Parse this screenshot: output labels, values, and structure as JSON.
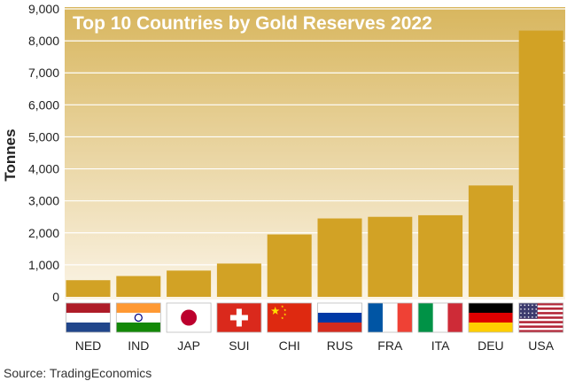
{
  "chart_data": {
    "type": "bar",
    "title": "Top 10 Countries by Gold Reserves 2022",
    "xlabel": "",
    "ylabel": "Tonnes",
    "ylim": [
      0,
      9000
    ],
    "yticks": [
      0,
      1000,
      2000,
      3000,
      4000,
      5000,
      6000,
      7000,
      8000,
      9000
    ],
    "ytick_labels": [
      "0",
      "1,000",
      "2,000",
      "3,000",
      "4,000",
      "5,000",
      "6,000",
      "7,000",
      "8,000",
      "9,000"
    ],
    "categories": [
      "NED",
      "IND",
      "JAP",
      "SUI",
      "CHI",
      "RUS",
      "FRA",
      "ITA",
      "DEU",
      "USA"
    ],
    "values": [
      520,
      650,
      820,
      1040,
      1950,
      2450,
      2500,
      2550,
      3480,
      8320
    ],
    "flags": [
      "netherlands-flag",
      "india-flag",
      "japan-flag",
      "switzerland-flag",
      "china-flag",
      "russia-flag",
      "france-flag",
      "italy-flag",
      "germany-flag",
      "usa-flag"
    ],
    "source": "Source: TradingEconomics",
    "colors": {
      "bar": "#D2A225",
      "bg_top": "#D8B65E",
      "bg_bottom": "#FBF4E6",
      "grid": "#FFFFFF",
      "title": "#FFFFFF"
    }
  }
}
